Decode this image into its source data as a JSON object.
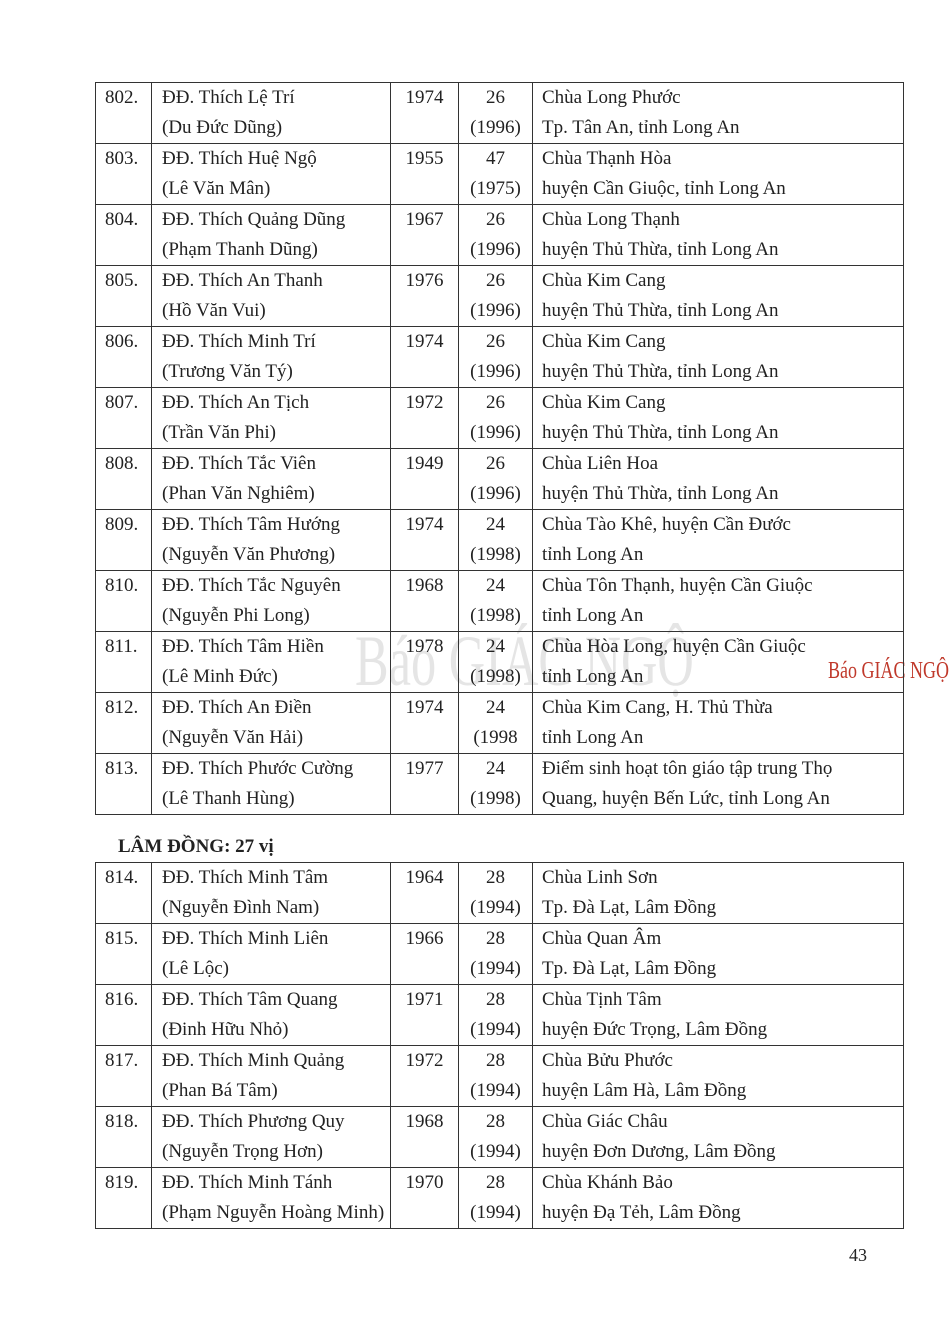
{
  "watermark": "Báo GIÁC NGỘ",
  "table1": {
    "rows": [
      [
        "802.",
        "ĐĐ. Thích Lệ Trí",
        "(Du Đức Dũng)",
        "1974",
        "26",
        "(1996)",
        "Chùa Long Phước",
        "Tp. Tân An, tỉnh Long An"
      ],
      [
        "803.",
        "ĐĐ. Thích Huệ Ngộ",
        "(Lê Văn Mân)",
        "1955",
        "47",
        "(1975)",
        "Chùa Thạnh Hòa",
        "huyện Cần Giuộc, tỉnh Long An"
      ],
      [
        "804.",
        "ĐĐ. Thích Quảng Dũng",
        "(Phạm Thanh Dũng)",
        "1967",
        "26",
        "(1996)",
        "Chùa Long Thạnh",
        "huyện Thủ Thừa, tỉnh Long An"
      ],
      [
        "805.",
        "ĐĐ. Thích An Thanh",
        "(Hồ Văn Vui)",
        "1976",
        "26",
        "(1996)",
        "Chùa Kim Cang",
        "huyện Thủ Thừa, tỉnh Long An"
      ],
      [
        "806.",
        "ĐĐ. Thích Minh Trí",
        "(Trương Văn Tý)",
        "1974",
        "26",
        "(1996)",
        "Chùa Kim Cang",
        "huyện Thủ Thừa, tỉnh Long An"
      ],
      [
        "807.",
        "ĐĐ. Thích An Tịch",
        "(Trần Văn Phi)",
        "1972",
        "26",
        "(1996)",
        "Chùa Kim Cang",
        "huyện Thủ Thừa, tỉnh Long An"
      ],
      [
        "808.",
        "ĐĐ. Thích Tắc Viên",
        "(Phan Văn Nghiêm)",
        "1949",
        "26",
        "(1996)",
        "Chùa Liên Hoa",
        "huyện Thủ Thừa, tỉnh Long An"
      ],
      [
        "809.",
        "ĐĐ. Thích Tâm Hướng",
        "(Nguyễn Văn Phương)",
        "1974",
        "24",
        "(1998)",
        "Chùa Tào Khê, huyện Cần Đước",
        "tỉnh Long An"
      ],
      [
        "810.",
        "ĐĐ. Thích Tắc Nguyên",
        "(Nguyễn Phi Long)",
        "1968",
        "24",
        "(1998)",
        "Chùa Tôn Thạnh, huyện Cần Giuộc",
        "tỉnh Long An"
      ],
      [
        "811.",
        "ĐĐ. Thích Tâm Hiền",
        "(Lê Minh Đức)",
        "1978",
        "24",
        "(1998)",
        "Chùa Hòa Long, huyện Cần Giuộc",
        "tỉnh Long An"
      ],
      [
        "812.",
        "ĐĐ. Thích An Điền",
        "(Nguyễn Văn Hải)",
        "1974",
        "24",
        "(1998",
        "Chùa Kim Cang, H. Thủ Thừa",
        "tỉnh Long An"
      ],
      [
        "813.",
        "ĐĐ. Thích Phước Cường",
        "(Lê Thanh Hùng)",
        "1977",
        "24",
        "(1998)",
        "Điểm sinh hoạt tôn giáo tập trung Thọ",
        "Quang, huyện Bến Lức, tỉnh Long An"
      ]
    ]
  },
  "section_heading": "LÂM ĐỒNG: 27 vị",
  "table2": {
    "rows": [
      [
        "814.",
        "ĐĐ. Thích Minh Tâm",
        "(Nguyễn Đình Nam)",
        "1964",
        "28",
        "(1994)",
        "Chùa Linh Sơn",
        "Tp. Đà Lạt, Lâm Đồng"
      ],
      [
        "815.",
        "ĐĐ. Thích Minh Liên",
        "(Lê Lộc)",
        "1966",
        "28",
        "(1994)",
        "Chùa Quan Âm",
        "Tp. Đà Lạt, Lâm Đồng"
      ],
      [
        "816.",
        "ĐĐ. Thích Tâm Quang",
        "(Đinh Hữu Nhỏ)",
        "1971",
        "28",
        "(1994)",
        "Chùa Tịnh Tâm",
        "huyện Đức Trọng, Lâm Đồng"
      ],
      [
        "817.",
        "ĐĐ. Thích Minh Quảng",
        "(Phan Bá Tâm)",
        "1972",
        "28",
        "(1994)",
        "Chùa Bửu Phước",
        "huyện Lâm Hà, Lâm Đồng"
      ],
      [
        "818.",
        "ĐĐ. Thích Phương Quy",
        "(Nguyễn Trọng Hơn)",
        "1968",
        "28",
        "(1994)",
        "Chùa Giác Châu",
        "huyện Đơn Dương, Lâm Đồng"
      ],
      [
        "819.",
        "ĐĐ. Thích Minh Tánh",
        "(Phạm Nguyễn Hoàng Minh)",
        "1970",
        "28",
        "(1994)",
        "Chùa Khánh Bảo",
        "huyện Đạ Tẻh, Lâm Đồng"
      ]
    ]
  },
  "page_number": "43"
}
